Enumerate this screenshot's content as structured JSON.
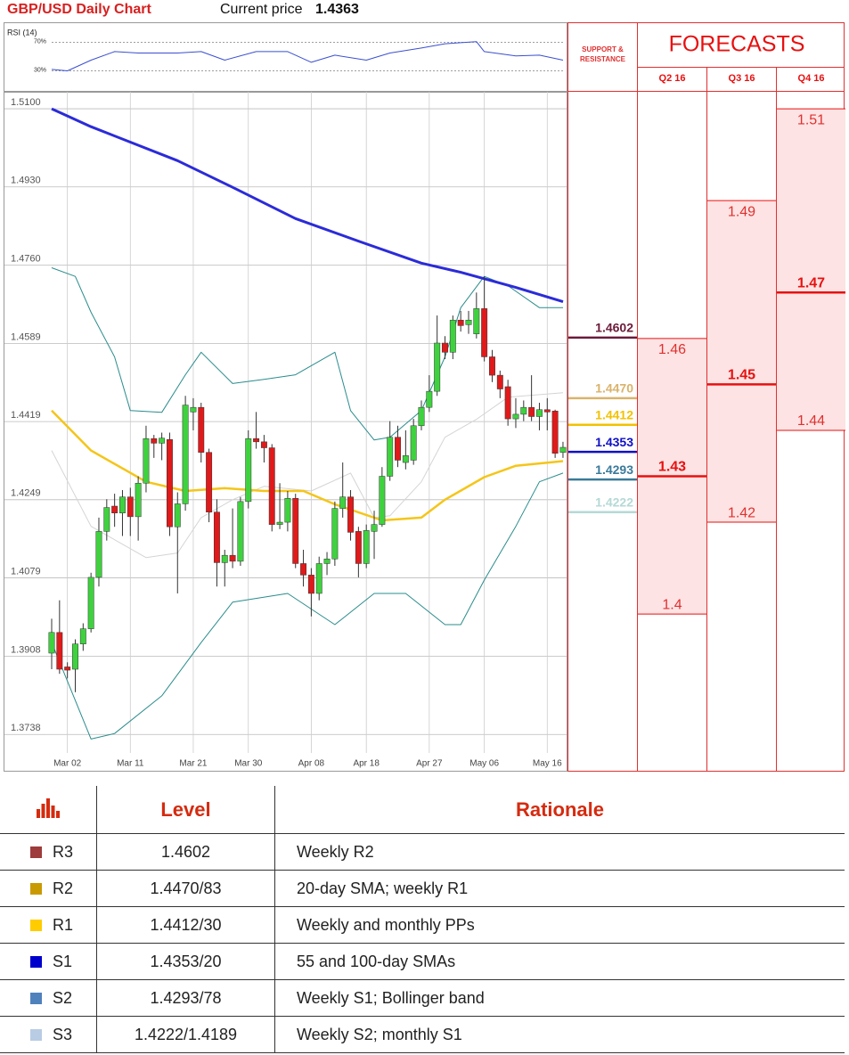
{
  "header": {
    "title": "GBP/USD Daily Chart",
    "price_label": "Current price",
    "price": 1.4363
  },
  "chart_data": [
    {
      "type": "line",
      "title": "RSI (14)",
      "ylim": [
        2,
        98
      ],
      "yticks": [
        {
          "value": 70,
          "label": "70%"
        },
        {
          "value": 30,
          "label": "30%"
        }
      ],
      "x": [
        0,
        2,
        5,
        8,
        11,
        16,
        19,
        22,
        26,
        30,
        33,
        36,
        40,
        43,
        47,
        50,
        54,
        55,
        59,
        62,
        65
      ],
      "series": [
        {
          "color": "#3a4fd0",
          "values": [
            32,
            30,
            45,
            57,
            55,
            55,
            57,
            45,
            57,
            57,
            42,
            52,
            45,
            55,
            62,
            68,
            71,
            57,
            51,
            52,
            45
          ]
        }
      ]
    },
    {
      "type": "candlestick",
      "ylim": [
        1.3657,
        1.5137
      ],
      "yticks": [
        {
          "value": 1.51,
          "label": "1.5100"
        },
        {
          "value": 1.493,
          "label": "1.4930"
        },
        {
          "value": 1.476,
          "label": "1.4760"
        },
        1.4589,
        1.4419,
        1.4249,
        1.4079,
        1.3908,
        1.3738
      ],
      "categories": [
        null,
        null,
        "Mar 02",
        null,
        null,
        null,
        null,
        null,
        null,
        null,
        "Mar 11",
        null,
        null,
        null,
        null,
        null,
        null,
        null,
        "Mar 21",
        null,
        null,
        null,
        null,
        null,
        null,
        "Mar 30",
        null,
        null,
        null,
        null,
        null,
        null,
        null,
        "Apr 08",
        null,
        null,
        null,
        null,
        null,
        null,
        "Apr 18",
        null,
        null,
        null,
        null,
        null,
        null,
        null,
        "Apr 27",
        null,
        null,
        null,
        null,
        null,
        null,
        "May 06",
        null,
        null,
        null,
        null,
        null,
        null,
        null,
        "May 16",
        null,
        null
      ],
      "open": [
        1.3915,
        1.396,
        1.3885,
        1.388,
        1.3935,
        1.3968,
        1.408,
        1.418,
        1.4235,
        1.422,
        1.4255,
        1.4212,
        1.4285,
        1.4382,
        1.4372,
        1.438,
        1.419,
        1.424,
        1.444,
        1.445,
        1.4352,
        1.4222,
        1.4112,
        1.4128,
        1.4115,
        1.4245,
        1.4382,
        1.4375,
        1.4362,
        1.4195,
        1.42,
        1.4252,
        1.411,
        1.4085,
        1.4045,
        1.411,
        1.412,
        1.423,
        1.4255,
        1.418,
        1.411,
        1.418,
        1.4195,
        1.43,
        1.4385,
        1.433,
        1.4335,
        1.441,
        1.445,
        1.4485,
        1.459,
        1.457,
        1.464,
        1.463,
        1.461,
        1.4665,
        1.456,
        1.452,
        1.4495,
        1.4425,
        1.4435,
        1.445,
        1.443,
        1.4445,
        1.4442,
        1.4352
      ],
      "high": [
        1.399,
        1.403,
        1.3895,
        1.3945,
        1.398,
        1.409,
        1.421,
        1.425,
        1.4262,
        1.427,
        1.4275,
        1.43,
        1.441,
        1.439,
        1.4395,
        1.4395,
        1.4265,
        1.4475,
        1.447,
        1.446,
        1.436,
        1.425,
        1.414,
        1.423,
        1.4255,
        1.44,
        1.444,
        1.439,
        1.437,
        1.4285,
        1.4268,
        1.4262,
        1.414,
        1.41,
        1.4125,
        1.4135,
        1.4245,
        1.433,
        1.427,
        1.419,
        1.4195,
        1.4225,
        1.432,
        1.442,
        1.441,
        1.44,
        1.4425,
        1.4465,
        1.452,
        1.465,
        1.4605,
        1.465,
        1.466,
        1.466,
        1.47,
        1.4735,
        1.4575,
        1.453,
        1.451,
        1.447,
        1.4465,
        1.452,
        1.446,
        1.447,
        1.4445,
        1.4375
      ],
      "low": [
        1.388,
        1.387,
        1.386,
        1.383,
        1.392,
        1.396,
        1.406,
        1.416,
        1.419,
        1.417,
        1.417,
        1.416,
        1.4265,
        1.434,
        1.4335,
        1.417,
        1.4045,
        1.4225,
        1.44,
        1.433,
        1.42,
        1.406,
        1.406,
        1.41,
        1.4105,
        1.423,
        1.436,
        1.433,
        1.418,
        1.4185,
        1.418,
        1.41,
        1.406,
        1.3995,
        1.403,
        1.4085,
        1.4105,
        1.421,
        1.416,
        1.408,
        1.41,
        1.412,
        1.419,
        1.429,
        1.432,
        1.4315,
        1.4325,
        1.44,
        1.444,
        1.4475,
        1.4555,
        1.4555,
        1.4615,
        1.461,
        1.46,
        1.455,
        1.4505,
        1.447,
        1.441,
        1.4405,
        1.442,
        1.442,
        1.44,
        1.44,
        1.434,
        1.434
      ],
      "close": [
        1.396,
        1.388,
        1.3878,
        1.3935,
        1.3968,
        1.408,
        1.418,
        1.4232,
        1.422,
        1.4255,
        1.4212,
        1.4285,
        1.4382,
        1.4372,
        1.4383,
        1.419,
        1.424,
        1.4455,
        1.445,
        1.4352,
        1.4222,
        1.4112,
        1.4128,
        1.4115,
        1.4245,
        1.4382,
        1.4375,
        1.4362,
        1.4195,
        1.42,
        1.4252,
        1.411,
        1.4085,
        1.4045,
        1.411,
        1.412,
        1.423,
        1.4255,
        1.4178,
        1.411,
        1.4182,
        1.4195,
        1.43,
        1.4385,
        1.4335,
        1.4345,
        1.441,
        1.445,
        1.4485,
        1.459,
        1.457,
        1.464,
        1.4628,
        1.464,
        1.4665,
        1.456,
        1.452,
        1.449,
        1.4425,
        1.4435,
        1.445,
        1.443,
        1.4445,
        1.444,
        1.435,
        1.4363
      ],
      "up_color": "#3fd23f",
      "down_color": "#e01a1a",
      "overlays": [
        {
          "color": "#d4d4d4",
          "x": [
            0,
            5,
            12,
            16,
            19,
            23,
            27,
            33,
            38,
            41,
            43,
            47,
            50,
            54,
            58,
            65
          ],
          "values": [
            1.4356,
            1.4191,
            1.4123,
            1.4133,
            1.421,
            1.4249,
            1.4278,
            1.4268,
            1.4307,
            1.421,
            1.4214,
            1.4288,
            1.4385,
            1.4424,
            1.4472,
            1.4482
          ]
        },
        {
          "color": "#2a8c8c",
          "x": [
            0,
            3,
            5,
            8,
            10,
            14,
            17,
            19,
            23,
            27,
            31,
            36,
            38,
            41,
            43,
            47,
            50,
            52,
            55,
            58,
            62,
            65
          ],
          "values": [
            1.4754,
            1.4735,
            1.4657,
            1.456,
            1.4443,
            1.4439,
            1.4521,
            1.457,
            1.4502,
            1.4511,
            1.4521,
            1.457,
            1.4443,
            1.4379,
            1.4385,
            1.4443,
            1.456,
            1.4667,
            1.4735,
            1.4715,
            1.4667,
            1.4667
          ]
        },
        {
          "color": "#2a8c8c",
          "x": [
            0,
            5,
            8,
            14,
            19,
            23,
            30,
            36,
            41,
            45,
            50,
            52,
            55,
            59,
            62,
            65
          ],
          "values": [
            1.3938,
            1.3728,
            1.374,
            1.3822,
            1.3938,
            1.4026,
            1.4045,
            1.3977,
            1.4045,
            1.4045,
            1.3977,
            1.3977,
            1.4074,
            1.4191,
            1.4288,
            1.4307
          ]
        },
        {
          "color": "#f5c518",
          "x": [
            0,
            5,
            12,
            17,
            22,
            27,
            32,
            36,
            42,
            47,
            50,
            55,
            59,
            65
          ],
          "values": [
            1.4443,
            1.4356,
            1.4288,
            1.4268,
            1.4274,
            1.4268,
            1.4268,
            1.4239,
            1.4204,
            1.421,
            1.4249,
            1.4298,
            1.4323,
            1.4333
          ]
        },
        {
          "color": "#2b2bd9",
          "x": [
            0,
            5,
            16,
            23,
            31,
            39,
            47,
            52,
            59,
            65
          ],
          "values": [
            1.51,
            1.5061,
            1.4987,
            1.4929,
            1.4861,
            1.4812,
            1.4764,
            1.4744,
            1.4711,
            1.468
          ]
        }
      ],
      "levels": {
        "title": "SUPPORT & RESISTANCE",
        "values": [
          1.4602,
          1.447,
          1.4412,
          1.4353,
          1.4293,
          1.4222
        ],
        "value_labels": [
          "1.4602",
          "1.4470",
          "1.4412",
          "1.4353",
          "1.4293",
          "1.4222"
        ],
        "colors": [
          "#6b1a3a",
          "#d9b36b",
          "#f2c200",
          "#1010c8",
          "#3a7a9a",
          "#b5d9d6"
        ]
      }
    },
    {
      "type": "range",
      "title": "FORECASTS",
      "categories": [
        "Q2 16",
        "Q3 16",
        "Q4 16"
      ],
      "low": [
        1.4,
        1.42,
        1.44
      ],
      "high": [
        1.46,
        1.49,
        1.51
      ],
      "target": [
        1.43,
        1.45,
        1.47
      ],
      "color": "#e81010",
      "fill": "#fde3e3"
    }
  ],
  "table": {
    "header": [
      "Level",
      "Rationale"
    ],
    "rows": [
      {
        "name": "R3",
        "color": "#9e3b3b",
        "level": "1.4602",
        "rationale": "Weekly R2"
      },
      {
        "name": "R2",
        "color": "#c99a00",
        "level": "1.4470/83",
        "rationale": "20-day SMA; weekly R1"
      },
      {
        "name": "R1",
        "color": "#ffcc00",
        "level": "1.4412/30",
        "rationale": "Weekly and monthly PPs"
      },
      {
        "name": "S1",
        "color": "#0000cc",
        "level": "1.4353/20",
        "rationale": "55 and 100-day SMAs"
      },
      {
        "name": "S2",
        "color": "#4f81bd",
        "level": "1.4293/78",
        "rationale": "Weekly S1; Bollinger band"
      },
      {
        "name": "S3",
        "color": "#b8cce4",
        "level": "1.4222/1.4189",
        "rationale": "Weekly S2; monthly S1"
      }
    ]
  }
}
